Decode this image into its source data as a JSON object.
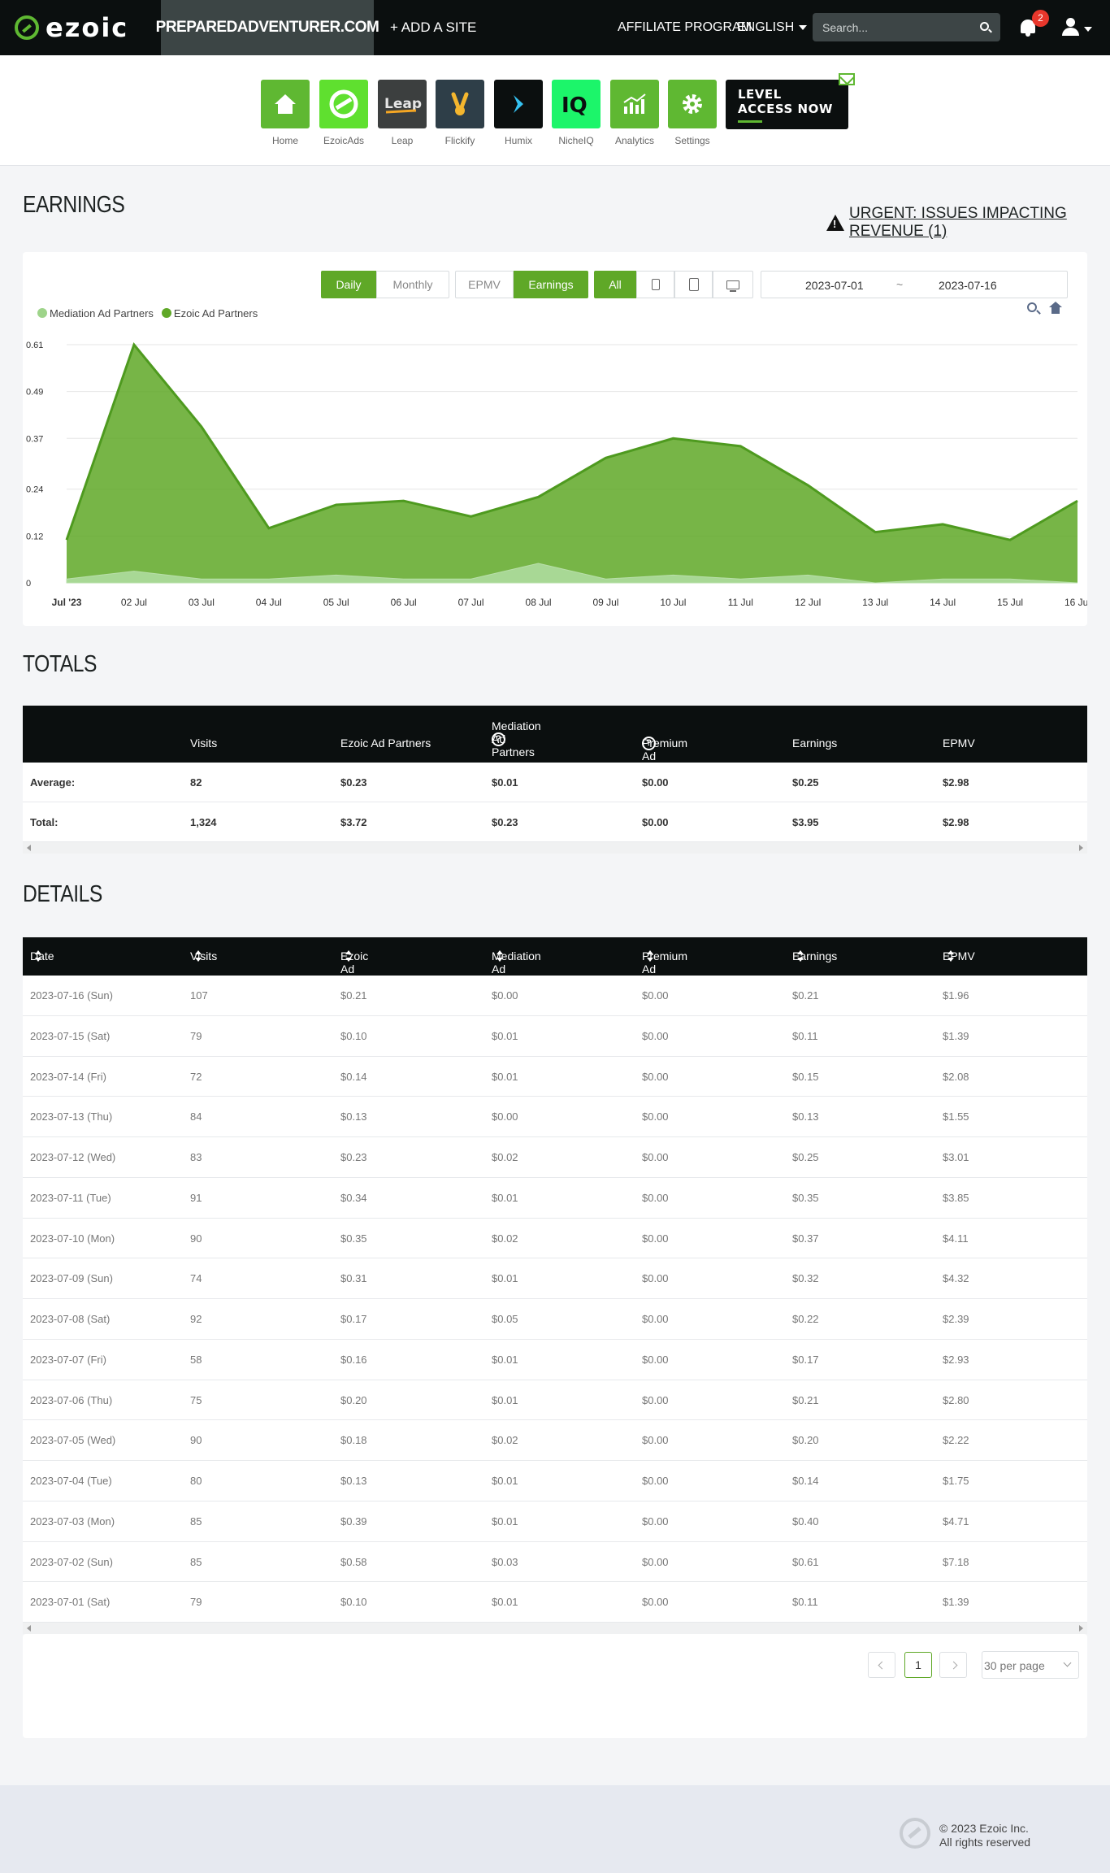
{
  "nav": {
    "brand": "ezoic",
    "site": "PREPAREDADVENTURER.COM",
    "add_site": "+ ADD A SITE",
    "affiliate": "AFFILIATE PROGRAM",
    "language": "ENGLISH",
    "search_placeholder": "Search...",
    "notifications": "2"
  },
  "apps": [
    {
      "label": "Home",
      "icon": "home-icon",
      "color": "#5fb832"
    },
    {
      "label": "EzoicAds",
      "icon": "ezoicads-icon",
      "color": "#5fe02f"
    },
    {
      "label": "Leap",
      "icon": "leap-icon",
      "color": "#3c3f3f"
    },
    {
      "label": "Flickify",
      "icon": "flickify-icon",
      "color": "#2e3e48"
    },
    {
      "label": "Humix",
      "icon": "humix-icon",
      "color": "#0b0f0f"
    },
    {
      "label": "NicheIQ",
      "icon": "iq-icon",
      "color": "#1cf56a"
    },
    {
      "label": "Analytics",
      "icon": "analytics-icon",
      "color": "#5fb832"
    },
    {
      "label": "Settings",
      "icon": "gear-icon",
      "color": "#5fb832"
    }
  ],
  "level_access": {
    "line1": "LEVEL",
    "line2": "ACCESS NOW"
  },
  "earnings": {
    "title": "EARNINGS",
    "urgent": "URGENT: ISSUES IMPACTING REVENUE (1)",
    "toggle_daily": "Daily",
    "toggle_monthly": "Monthly",
    "metric_epmv": "EPMV",
    "metric_earnings": "Earnings",
    "device_all": "All",
    "date_from": "2023-07-01",
    "date_sep": "~",
    "date_to": "2023-07-16",
    "legend_mediation": "Mediation Ad Partners",
    "legend_ezoic": "Ezoic Ad Partners"
  },
  "chart_data": {
    "type": "area",
    "x": [
      "Jul '23",
      "02 Jul",
      "03 Jul",
      "04 Jul",
      "05 Jul",
      "06 Jul",
      "07 Jul",
      "08 Jul",
      "09 Jul",
      "10 Jul",
      "11 Jul",
      "12 Jul",
      "13 Jul",
      "14 Jul",
      "15 Jul",
      "16 Jul"
    ],
    "yticks": [
      "0",
      "0.12",
      "0.24",
      "0.37",
      "0.49",
      "0.61"
    ],
    "ylim": [
      0,
      0.61
    ],
    "stacked": true,
    "series": [
      {
        "name": "Mediation Ad Partners",
        "color": "#9ed48a",
        "values": [
          0.01,
          0.03,
          0.01,
          0.01,
          0.02,
          0.01,
          0.01,
          0.05,
          0.01,
          0.02,
          0.01,
          0.02,
          0.0,
          0.01,
          0.01,
          0.0
        ]
      },
      {
        "name": "Ezoic Ad Partners",
        "color": "#5fa827",
        "values": [
          0.1,
          0.58,
          0.39,
          0.13,
          0.18,
          0.2,
          0.16,
          0.17,
          0.31,
          0.35,
          0.34,
          0.23,
          0.13,
          0.14,
          0.1,
          0.21
        ]
      }
    ],
    "legend": "top-left",
    "grid": true
  },
  "totals": {
    "title": "TOTALS",
    "headers": [
      "",
      "Visits",
      "Ezoic Ad Partners",
      "Mediation Ad Partners",
      "Premium Ad Partners",
      "Earnings",
      "EPMV"
    ],
    "rows": [
      [
        "Average:",
        "82",
        "$0.23",
        "$0.01",
        "$0.00",
        "$0.25",
        "$2.98"
      ],
      [
        "Total:",
        "1,324",
        "$3.72",
        "$0.23",
        "$0.00",
        "$3.95",
        "$2.98"
      ]
    ]
  },
  "details": {
    "title": "DETAILS",
    "headers": [
      "Date",
      "Visits",
      "Ezoic Ad Partners",
      "Mediation Ad Partners",
      "Premium Ad Partners",
      "Earnings",
      "EPMV"
    ],
    "rows": [
      [
        "2023-07-16 (Sun)",
        "107",
        "$0.21",
        "$0.00",
        "$0.00",
        "$0.21",
        "$1.96"
      ],
      [
        "2023-07-15 (Sat)",
        "79",
        "$0.10",
        "$0.01",
        "$0.00",
        "$0.11",
        "$1.39"
      ],
      [
        "2023-07-14 (Fri)",
        "72",
        "$0.14",
        "$0.01",
        "$0.00",
        "$0.15",
        "$2.08"
      ],
      [
        "2023-07-13 (Thu)",
        "84",
        "$0.13",
        "$0.00",
        "$0.00",
        "$0.13",
        "$1.55"
      ],
      [
        "2023-07-12 (Wed)",
        "83",
        "$0.23",
        "$0.02",
        "$0.00",
        "$0.25",
        "$3.01"
      ],
      [
        "2023-07-11 (Tue)",
        "91",
        "$0.34",
        "$0.01",
        "$0.00",
        "$0.35",
        "$3.85"
      ],
      [
        "2023-07-10 (Mon)",
        "90",
        "$0.35",
        "$0.02",
        "$0.00",
        "$0.37",
        "$4.11"
      ],
      [
        "2023-07-09 (Sun)",
        "74",
        "$0.31",
        "$0.01",
        "$0.00",
        "$0.32",
        "$4.32"
      ],
      [
        "2023-07-08 (Sat)",
        "92",
        "$0.17",
        "$0.05",
        "$0.00",
        "$0.22",
        "$2.39"
      ],
      [
        "2023-07-07 (Fri)",
        "58",
        "$0.16",
        "$0.01",
        "$0.00",
        "$0.17",
        "$2.93"
      ],
      [
        "2023-07-06 (Thu)",
        "75",
        "$0.20",
        "$0.01",
        "$0.00",
        "$0.21",
        "$2.80"
      ],
      [
        "2023-07-05 (Wed)",
        "90",
        "$0.18",
        "$0.02",
        "$0.00",
        "$0.20",
        "$2.22"
      ],
      [
        "2023-07-04 (Tue)",
        "80",
        "$0.13",
        "$0.01",
        "$0.00",
        "$0.14",
        "$1.75"
      ],
      [
        "2023-07-03 (Mon)",
        "85",
        "$0.39",
        "$0.01",
        "$0.00",
        "$0.40",
        "$4.71"
      ],
      [
        "2023-07-02 (Sun)",
        "85",
        "$0.58",
        "$0.03",
        "$0.00",
        "$0.61",
        "$7.18"
      ],
      [
        "2023-07-01 (Sat)",
        "79",
        "$0.10",
        "$0.01",
        "$0.00",
        "$0.11",
        "$1.39"
      ]
    ]
  },
  "pagination": {
    "current": "1",
    "per_page": "30 per page"
  },
  "footer": {
    "line1": "© 2023 Ezoic Inc.",
    "line2": "All rights reserved"
  }
}
